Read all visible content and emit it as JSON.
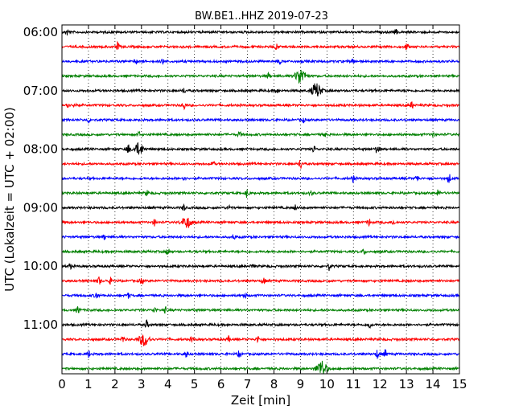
{
  "chart_data": {
    "type": "line",
    "title": "BW.BE1..HHZ 2019-07-23",
    "xlabel": "Zeit  [min]",
    "ylabel": "UTC (Lokalzeit = UTC + 02:00)",
    "xlim": [
      0,
      15
    ],
    "x_ticks": [
      0,
      1,
      2,
      3,
      4,
      5,
      6,
      7,
      8,
      9,
      10,
      11,
      12,
      13,
      14,
      15
    ],
    "x_tick_labels": [
      "0",
      "1",
      "2",
      "3",
      "4",
      "5",
      "6",
      "7",
      "8",
      "9",
      "10",
      "11",
      "12",
      "13",
      "14",
      "15"
    ],
    "y_tick_labels": [
      "06:00",
      "07:00",
      "08:00",
      "09:00",
      "10:00",
      "11:00"
    ],
    "y_tick_trace_index": [
      0,
      4,
      8,
      12,
      16,
      20
    ],
    "grid": "vertical dotted",
    "trace_colors": [
      "#000000",
      "#ff0000",
      "#0000ff",
      "#008000"
    ],
    "traces": [
      {
        "start": "06:00",
        "events": [
          [
            0.2,
            4
          ],
          [
            12.6,
            3
          ]
        ]
      },
      {
        "start": "06:15",
        "events": [
          [
            2.1,
            5
          ],
          [
            8.1,
            4
          ],
          [
            13.0,
            4
          ]
        ]
      },
      {
        "start": "06:30",
        "events": [
          [
            2.8,
            3
          ],
          [
            3.8,
            3
          ],
          [
            8.2,
            3
          ],
          [
            11.0,
            3
          ]
        ]
      },
      {
        "start": "06:45",
        "events": [
          [
            9.0,
            10
          ],
          [
            7.8,
            3
          ]
        ]
      },
      {
        "start": "07:00",
        "events": [
          [
            9.6,
            9
          ],
          [
            4.6,
            3
          ],
          [
            8.1,
            3
          ]
        ]
      },
      {
        "start": "07:15",
        "events": [
          [
            0.2,
            5
          ],
          [
            0.5,
            4
          ],
          [
            4.6,
            5
          ],
          [
            13.2,
            4
          ]
        ]
      },
      {
        "start": "07:30",
        "events": [
          [
            1.0,
            3
          ],
          [
            9.1,
            3
          ]
        ]
      },
      {
        "start": "07:45",
        "events": [
          [
            2.9,
            3
          ],
          [
            6.7,
            3
          ],
          [
            9.9,
            3
          ],
          [
            14.0,
            3
          ]
        ]
      },
      {
        "start": "08:00",
        "events": [
          [
            2.5,
            6
          ],
          [
            2.9,
            7
          ],
          [
            9.5,
            4
          ],
          [
            11.9,
            6
          ]
        ]
      },
      {
        "start": "08:15",
        "events": [
          [
            5.7,
            3
          ],
          [
            9.0,
            6
          ]
        ]
      },
      {
        "start": "08:30",
        "events": [
          [
            4.6,
            3
          ],
          [
            11.0,
            4
          ],
          [
            13.4,
            4
          ],
          [
            14.6,
            6
          ]
        ]
      },
      {
        "start": "08:45",
        "events": [
          [
            7.0,
            6
          ],
          [
            3.2,
            3
          ],
          [
            9.4,
            3
          ],
          [
            14.2,
            4
          ]
        ]
      },
      {
        "start": "09:00",
        "events": [
          [
            4.6,
            4
          ],
          [
            6.3,
            3
          ],
          [
            8.8,
            3
          ]
        ]
      },
      {
        "start": "09:15",
        "events": [
          [
            4.7,
            7
          ],
          [
            3.5,
            4
          ],
          [
            11.6,
            4
          ],
          [
            12.5,
            3
          ]
        ]
      },
      {
        "start": "09:30",
        "events": [
          [
            1.6,
            3
          ],
          [
            6.5,
            3
          ]
        ]
      },
      {
        "start": "09:45",
        "events": [
          [
            4.0,
            5
          ],
          [
            11.4,
            3
          ]
        ]
      },
      {
        "start": "10:00",
        "events": [
          [
            0.3,
            3
          ],
          [
            7.2,
            3
          ],
          [
            10.1,
            5
          ]
        ]
      },
      {
        "start": "10:15",
        "events": [
          [
            1.4,
            5
          ],
          [
            1.8,
            4
          ],
          [
            3.0,
            4
          ],
          [
            7.6,
            4
          ]
        ]
      },
      {
        "start": "10:30",
        "events": [
          [
            1.3,
            5
          ],
          [
            2.5,
            3
          ],
          [
            6.9,
            3
          ]
        ]
      },
      {
        "start": "10:45",
        "events": [
          [
            0.6,
            5
          ],
          [
            3.5,
            3
          ],
          [
            3.9,
            3
          ]
        ]
      },
      {
        "start": "11:00",
        "events": [
          [
            3.2,
            5
          ],
          [
            11.6,
            4
          ]
        ]
      },
      {
        "start": "11:15",
        "events": [
          [
            3.1,
            8
          ],
          [
            2.3,
            4
          ],
          [
            4.9,
            3
          ],
          [
            6.3,
            3
          ],
          [
            7.4,
            4
          ]
        ]
      },
      {
        "start": "11:30",
        "events": [
          [
            1.0,
            4
          ],
          [
            4.7,
            4
          ],
          [
            6.7,
            4
          ],
          [
            11.9,
            5
          ],
          [
            12.2,
            5
          ]
        ]
      },
      {
        "start": "11:45",
        "events": [
          [
            9.8,
            10
          ]
        ]
      }
    ]
  }
}
